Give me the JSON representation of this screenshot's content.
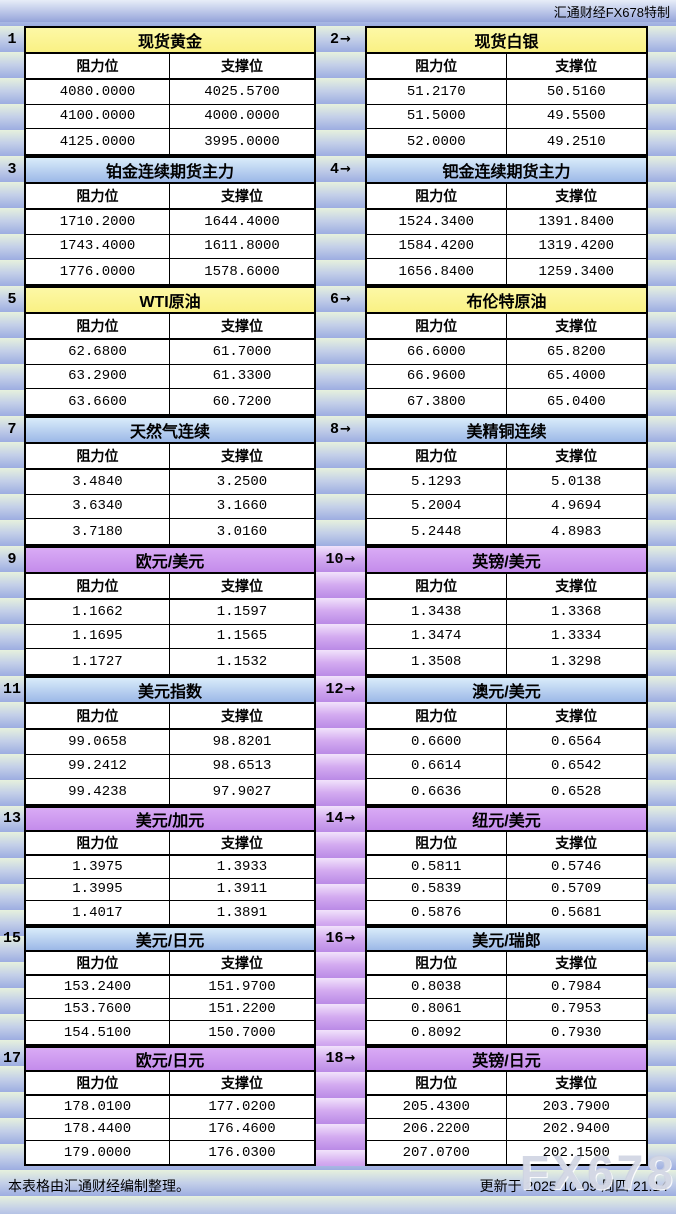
{
  "topbar": {
    "brand": "汇通财经FX678特制"
  },
  "labels": {
    "resistance": "阻力位",
    "support": "支撑位",
    "arrow": "→"
  },
  "footer": {
    "left": "本表格由汇通财经编制整理。",
    "right": "更新于 2025-10-09 周四 21:14"
  },
  "watermark": "FX678",
  "theme": {
    "yellow_header": "#faf48e",
    "blue_header_top": "#d9ecfa",
    "blue_header_bottom": "#9cb8e7",
    "purple_header": "#ce9bf0",
    "stripe_green": "#e6f1dd",
    "stripe_blue": "#9dade1",
    "gutter_purple": "#ba8ae6"
  },
  "chart_data": {
    "type": "table",
    "columns": [
      "阻力位",
      "支撑位"
    ],
    "tables": [
      {
        "id": "1",
        "title": "现货黄金",
        "rows": [
          [
            "4080.0000",
            "4025.5700"
          ],
          [
            "4100.0000",
            "4000.0000"
          ],
          [
            "4125.0000",
            "3995.0000"
          ]
        ]
      },
      {
        "id": "2",
        "title": "现货白银",
        "rows": [
          [
            "51.2170",
            "50.5160"
          ],
          [
            "51.5000",
            "49.5500"
          ],
          [
            "52.0000",
            "49.2510"
          ]
        ]
      },
      {
        "id": "3",
        "title": "铂金连续期货主力",
        "rows": [
          [
            "1710.2000",
            "1644.4000"
          ],
          [
            "1743.4000",
            "1611.8000"
          ],
          [
            "1776.0000",
            "1578.6000"
          ]
        ]
      },
      {
        "id": "4",
        "title": "钯金连续期货主力",
        "rows": [
          [
            "1524.3400",
            "1391.8400"
          ],
          [
            "1584.4200",
            "1319.4200"
          ],
          [
            "1656.8400",
            "1259.3400"
          ]
        ]
      },
      {
        "id": "5",
        "title": "WTI原油",
        "rows": [
          [
            "62.6800",
            "61.7000"
          ],
          [
            "63.2900",
            "61.3300"
          ],
          [
            "63.6600",
            "60.7200"
          ]
        ]
      },
      {
        "id": "6",
        "title": "布伦特原油",
        "rows": [
          [
            "66.6000",
            "65.8200"
          ],
          [
            "66.9600",
            "65.4000"
          ],
          [
            "67.3800",
            "65.0400"
          ]
        ]
      },
      {
        "id": "7",
        "title": "天然气连续",
        "rows": [
          [
            "3.4840",
            "3.2500"
          ],
          [
            "3.6340",
            "3.1660"
          ],
          [
            "3.7180",
            "3.0160"
          ]
        ]
      },
      {
        "id": "8",
        "title": "美精铜连续",
        "rows": [
          [
            "5.1293",
            "5.0138"
          ],
          [
            "5.2004",
            "4.9694"
          ],
          [
            "5.2448",
            "4.8983"
          ]
        ]
      },
      {
        "id": "9",
        "title": "欧元/美元",
        "rows": [
          [
            "1.1662",
            "1.1597"
          ],
          [
            "1.1695",
            "1.1565"
          ],
          [
            "1.1727",
            "1.1532"
          ]
        ]
      },
      {
        "id": "10",
        "title": "英镑/美元",
        "rows": [
          [
            "1.3438",
            "1.3368"
          ],
          [
            "1.3474",
            "1.3334"
          ],
          [
            "1.3508",
            "1.3298"
          ]
        ]
      },
      {
        "id": "11",
        "title": "美元指数",
        "rows": [
          [
            "99.0658",
            "98.8201"
          ],
          [
            "99.2412",
            "98.6513"
          ],
          [
            "99.4238",
            "97.9027"
          ]
        ]
      },
      {
        "id": "12",
        "title": "澳元/美元",
        "rows": [
          [
            "0.6600",
            "0.6564"
          ],
          [
            "0.6614",
            "0.6542"
          ],
          [
            "0.6636",
            "0.6528"
          ]
        ]
      },
      {
        "id": "13",
        "title": "美元/加元",
        "rows": [
          [
            "1.3975",
            "1.3933"
          ],
          [
            "1.3995",
            "1.3911"
          ],
          [
            "1.4017",
            "1.3891"
          ]
        ]
      },
      {
        "id": "14",
        "title": "纽元/美元",
        "rows": [
          [
            "0.5811",
            "0.5746"
          ],
          [
            "0.5839",
            "0.5709"
          ],
          [
            "0.5876",
            "0.5681"
          ]
        ]
      },
      {
        "id": "15",
        "title": "美元/日元",
        "rows": [
          [
            "153.2400",
            "151.9700"
          ],
          [
            "153.7600",
            "151.2200"
          ],
          [
            "154.5100",
            "150.7000"
          ]
        ]
      },
      {
        "id": "16",
        "title": "美元/瑞郎",
        "rows": [
          [
            "0.8038",
            "0.7984"
          ],
          [
            "0.8061",
            "0.7953"
          ],
          [
            "0.8092",
            "0.7930"
          ]
        ]
      },
      {
        "id": "17",
        "title": "欧元/日元",
        "rows": [
          [
            "178.0100",
            "177.0200"
          ],
          [
            "178.4400",
            "176.4600"
          ],
          [
            "179.0000",
            "176.0300"
          ]
        ]
      },
      {
        "id": "18",
        "title": "英镑/日元",
        "rows": [
          [
            "205.4300",
            "203.7900"
          ],
          [
            "206.2200",
            "202.9400"
          ],
          [
            "207.0700",
            "202.1500"
          ]
        ]
      }
    ]
  }
}
